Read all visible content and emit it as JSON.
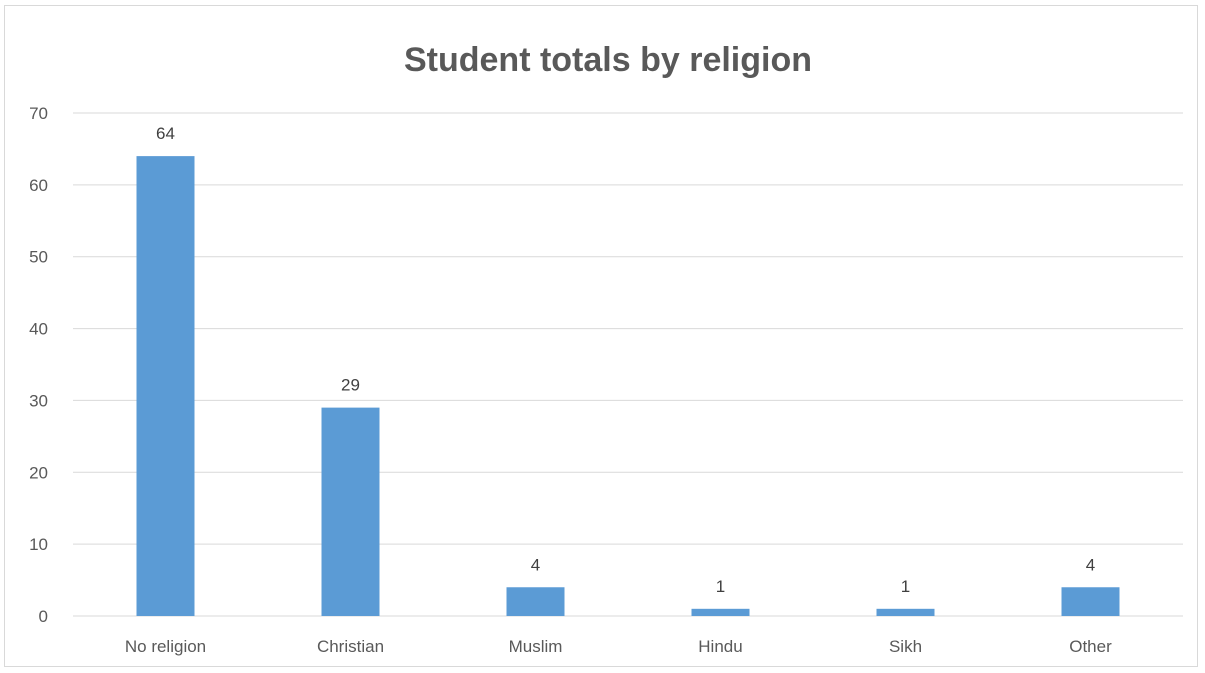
{
  "chart_data": {
    "type": "bar",
    "title": "Student totals by religion",
    "xlabel": "",
    "ylabel": "",
    "categories": [
      "No religion",
      "Christian",
      "Muslim",
      "Hindu",
      "Sikh",
      "Other"
    ],
    "values": [
      64,
      29,
      4,
      1,
      1,
      4
    ],
    "ylim": [
      0,
      70
    ],
    "yticks": [
      0,
      10,
      20,
      30,
      40,
      50,
      60,
      70
    ],
    "grid": true,
    "legend": "none",
    "data_labels": true,
    "colors": {
      "bar": "#5b9bd5",
      "grid": "#d9d9d9",
      "text": "#595959"
    }
  }
}
